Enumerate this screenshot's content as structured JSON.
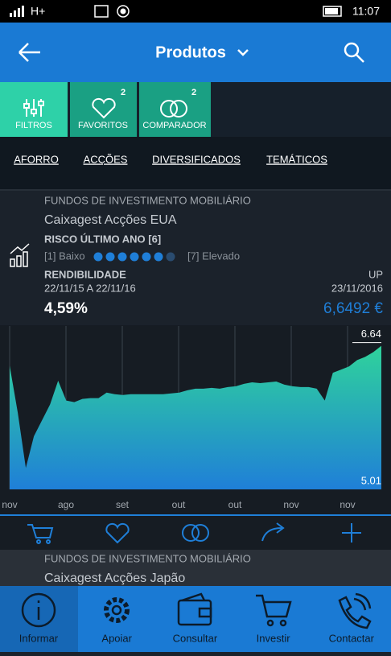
{
  "status_bar": {
    "network": "H+",
    "time": "11:07"
  },
  "header": {
    "title": "Produtos"
  },
  "tabs": [
    {
      "label": "FILTROS"
    },
    {
      "label": "FAVORITOS",
      "badge": "2"
    },
    {
      "label": "COMPARADOR",
      "badge": "2"
    }
  ],
  "categories": [
    "AFORRO",
    "ACÇÕES",
    "DIVERSIFICADOS",
    "TEMÁTICOS"
  ],
  "fund": {
    "type": "FUNDOS DE INVESTIMENTO MOBILIÁRIO",
    "name": "Caixagest Acções EUA",
    "risk_title": "RISCO ÚLTIMO ANO [6]",
    "risk_low": "[1] Baixo",
    "risk_high": "[7] Elevado",
    "risk_filled": 6,
    "risk_total": 7,
    "return_title": "RENDIBILIDADE",
    "return_period": "22/11/15 A 22/11/16",
    "return_value": "4,59%",
    "up_title": "UP",
    "up_date": "23/11/2016",
    "up_value": "6,6492 €"
  },
  "chart_data": {
    "type": "area",
    "x_labels": [
      "nov",
      "ago",
      "set",
      "out",
      "out",
      "nov",
      "nov"
    ],
    "values": [
      6.39,
      5.8,
      5.1,
      5.5,
      5.7,
      5.9,
      6.2,
      5.95,
      5.93,
      5.97,
      5.98,
      5.98,
      6.05,
      6.03,
      6.02,
      6.03,
      6.03,
      6.03,
      6.03,
      6.03,
      6.04,
      6.05,
      6.08,
      6.1,
      6.1,
      6.11,
      6.1,
      6.12,
      6.13,
      6.16,
      6.18,
      6.17,
      6.18,
      6.19,
      6.15,
      6.13,
      6.12,
      6.12,
      6.1,
      5.95,
      6.3,
      6.34,
      6.38,
      6.46,
      6.5,
      6.56,
      6.64
    ],
    "ylim": [
      4.83,
      6.89
    ],
    "max_label": 6.64,
    "min_label": 5.01,
    "colors": [
      "#2fd39b",
      "#1f7fd8"
    ]
  },
  "next_fund": {
    "type": "FUNDOS DE INVESTIMENTO MOBILIÁRIO",
    "name": "Caixagest Acções Japão"
  },
  "nav": [
    "Informar",
    "Apoiar",
    "Consultar",
    "Investir",
    "Contactar"
  ]
}
